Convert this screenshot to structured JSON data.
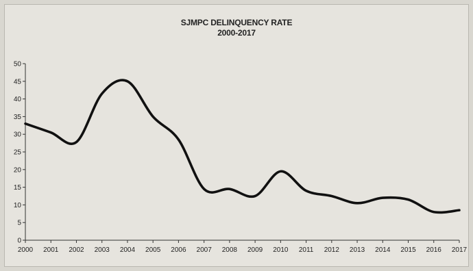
{
  "chart_data": {
    "type": "line",
    "title": "SJMPC DELINQUENCY RATE",
    "subtitle": "2000-2017",
    "xlabel": "",
    "ylabel": "",
    "x": [
      "2000",
      "2001",
      "2002",
      "2003",
      "2004",
      "2005",
      "2006",
      "2007",
      "2008",
      "2009",
      "2010",
      "2011",
      "2012",
      "2013",
      "2014",
      "2015",
      "2016",
      "2017"
    ],
    "series": [
      {
        "values": [
          33,
          30.5,
          27.8,
          41.5,
          45,
          35,
          28.5,
          14.5,
          14.5,
          12.5,
          19.5,
          14,
          12.5,
          10.5,
          12,
          11.5,
          8,
          8.5
        ]
      }
    ],
    "yticks": [
      0,
      5,
      10,
      15,
      20,
      25,
      30,
      35,
      40,
      45,
      50
    ],
    "ylim": [
      0,
      50
    ],
    "grid": false,
    "line_color": "#111111"
  }
}
